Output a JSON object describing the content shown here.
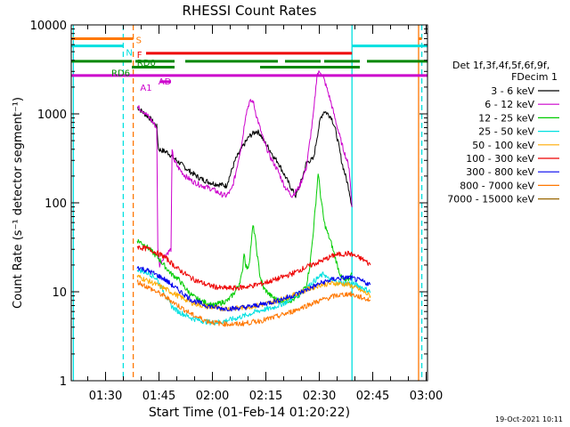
{
  "chart_data": {
    "type": "line",
    "title": "RHESSI Count Rates",
    "xlabel": "Start Time (01-Feb-14 01:20:22)",
    "ylabel": "Count Rate (s⁻¹ detector segment⁻¹)",
    "ylog": true,
    "ylim": [
      1,
      10000
    ],
    "xlim_minutes": [
      0,
      100
    ],
    "x_unit": "minutes after 01:20:22",
    "xticks": [
      {
        "label": "01:30",
        "minute": 9.63
      },
      {
        "label": "01:45",
        "minute": 24.63
      },
      {
        "label": "02:00",
        "minute": 39.63
      },
      {
        "label": "02:15",
        "minute": 54.63
      },
      {
        "label": "02:30",
        "minute": 69.63
      },
      {
        "label": "02:45",
        "minute": 84.63
      },
      {
        "label": "03:00",
        "minute": 99.63
      }
    ],
    "yticks": [
      {
        "label": "1",
        "value": 1
      },
      {
        "label": "10",
        "value": 10
      },
      {
        "label": "100",
        "value": 100
      },
      {
        "label": "1000",
        "value": 1000
      },
      {
        "label": "10000",
        "value": 10000
      }
    ],
    "legend": {
      "position": "right",
      "header": [
        "Det 1f,3f,4f,5f,6f,9f,",
        "FDecim 1"
      ]
    },
    "series": [
      {
        "name": "3 - 6 keV",
        "color": "#000000",
        "x": [
          18.5,
          20,
          22,
          24,
          24.5,
          27,
          30,
          33,
          36,
          38,
          40,
          42,
          43.5,
          44.5,
          46,
          48,
          50,
          52,
          53,
          54,
          56,
          57,
          58,
          60,
          62,
          63,
          64,
          65,
          66,
          67,
          68,
          69,
          70,
          71,
          72,
          73,
          74,
          75,
          76,
          77,
          78,
          78.8
        ],
        "y": [
          1200,
          1050,
          900,
          720,
          400,
          370,
          290,
          230,
          190,
          175,
          165,
          160,
          155,
          200,
          300,
          420,
          560,
          640,
          600,
          500,
          380,
          320,
          290,
          200,
          140,
          120,
          150,
          200,
          280,
          300,
          310,
          550,
          900,
          1080,
          1000,
          920,
          700,
          460,
          280,
          200,
          140,
          90
        ]
      },
      {
        "name": "6 - 12 keV",
        "color": "#cc00cc",
        "x": [
          18.5,
          20,
          22,
          24,
          24.3,
          24.8,
          26,
          28,
          28.3,
          29,
          30,
          32,
          34,
          36,
          38,
          40,
          42,
          43.5,
          45,
          46,
          48,
          49,
          50,
          51,
          52,
          54,
          56,
          58,
          60,
          62,
          64,
          66,
          67,
          68,
          69,
          70,
          71,
          72,
          73,
          74,
          76,
          78,
          78.8
        ],
        "y": [
          1200,
          1100,
          900,
          700,
          30,
          20,
          25,
          30,
          380,
          290,
          250,
          200,
          175,
          160,
          150,
          140,
          125,
          120,
          140,
          200,
          500,
          1000,
          1350,
          1400,
          950,
          500,
          320,
          230,
          150,
          120,
          150,
          250,
          500,
          1000,
          2800,
          3000,
          2400,
          1800,
          1300,
          900,
          450,
          250,
          90
        ]
      },
      {
        "name": "12 - 25 keV",
        "color": "#00cc00",
        "x": [
          18.5,
          20,
          22,
          24,
          26,
          28,
          30,
          32,
          34,
          36,
          38,
          40,
          42,
          44,
          46,
          47,
          48,
          48.5,
          49,
          49.5,
          50,
          50.5,
          51,
          51.5,
          52,
          53,
          54,
          56,
          58,
          60,
          62,
          64,
          66,
          67,
          68,
          69,
          69.3,
          70,
          71,
          72,
          73,
          74,
          75,
          76,
          77,
          78,
          78.8
        ],
        "y": [
          38,
          35,
          30,
          25,
          20,
          16,
          14,
          11,
          9,
          8,
          7.5,
          7,
          7.5,
          8,
          10,
          12,
          16,
          28,
          20,
          18,
          22,
          35,
          55,
          45,
          30,
          15,
          11,
          9,
          8,
          8,
          8,
          9,
          12,
          20,
          50,
          150,
          220,
          120,
          60,
          45,
          35,
          25,
          18,
          14,
          13,
          14,
          16
        ]
      },
      {
        "name": "25 - 50 keV",
        "color": "#00e0e0",
        "x": [
          18.5,
          20,
          22,
          24,
          26,
          28,
          30,
          32,
          34,
          36,
          38,
          40,
          42,
          44,
          46,
          48,
          50,
          52,
          54,
          56,
          58,
          60,
          62,
          64,
          66,
          68,
          69,
          70,
          71,
          72,
          74,
          76,
          78,
          80,
          82,
          84
        ],
        "y": [
          18,
          17,
          16,
          14,
          10,
          7,
          6,
          5.5,
          5,
          4.8,
          4.6,
          4.5,
          4.6,
          4.8,
          5,
          5.3,
          5.6,
          6,
          6.3,
          6.5,
          7,
          7.5,
          8.5,
          9.5,
          11,
          13,
          14,
          15,
          16,
          14,
          13,
          12.5,
          12.5,
          12,
          11,
          10
        ]
      },
      {
        "name": "50 - 100 keV",
        "color": "#ffaa00",
        "x": [
          18.5,
          22,
          26,
          30,
          34,
          38,
          42,
          46,
          50,
          54,
          58,
          62,
          66,
          70,
          74,
          78,
          82,
          84
        ],
        "y": [
          15,
          13,
          11,
          9,
          7.5,
          6.8,
          6.5,
          6.5,
          6.8,
          7.2,
          8,
          9,
          10.5,
          12,
          12.5,
          12,
          10,
          9
        ]
      },
      {
        "name": "100 - 300 keV",
        "color": "#ee0000",
        "x": [
          18.5,
          22,
          26,
          30,
          34,
          38,
          42,
          46,
          50,
          54,
          58,
          62,
          66,
          70,
          74,
          78,
          82,
          84
        ],
        "y": [
          32,
          30,
          25,
          18,
          14,
          12,
          11,
          11,
          11.5,
          12.5,
          14,
          16,
          19,
          22,
          26,
          27,
          23,
          20
        ]
      },
      {
        "name": "300 - 800 keV",
        "color": "#0000ee",
        "x": [
          18.5,
          22,
          26,
          30,
          34,
          38,
          42,
          46,
          50,
          54,
          58,
          62,
          66,
          70,
          74,
          78,
          82,
          84
        ],
        "y": [
          19,
          17,
          14,
          10.5,
          8,
          7,
          6.5,
          6.5,
          6.8,
          7.3,
          8,
          9,
          10.5,
          12.5,
          14,
          14.5,
          13,
          12
        ]
      },
      {
        "name": "800 - 7000 keV",
        "color": "#ff7700",
        "x": [
          18.5,
          22,
          26,
          30,
          34,
          38,
          42,
          46,
          50,
          54,
          58,
          62,
          66,
          70,
          74,
          78,
          82,
          84
        ],
        "y": [
          13,
          11,
          9,
          7,
          5.5,
          4.7,
          4.4,
          4.3,
          4.5,
          4.8,
          5.3,
          6,
          7,
          8,
          9,
          9.5,
          8.5,
          8
        ]
      },
      {
        "name": "7000 - 15000 keV",
        "color": "#996600",
        "x": [],
        "y": []
      }
    ],
    "vertical_lines": [
      {
        "minute": 0.6,
        "color": "#00e0e0",
        "style": "solid"
      },
      {
        "minute": 14.6,
        "color": "#00e0e0",
        "style": "dashed"
      },
      {
        "minute": 17.4,
        "color": "#ff7700",
        "style": "dashed"
      },
      {
        "minute": 78.8,
        "color": "#00e0e0",
        "style": "solid"
      },
      {
        "minute": 97.5,
        "color": "#ff7700",
        "style": "solid"
      },
      {
        "minute": 98.4,
        "color": "#00e0e0",
        "style": "dashed"
      }
    ],
    "flag_bars": [
      {
        "label": "S",
        "color": "#ff7700",
        "segments": [
          [
            0,
            17.4
          ],
          [
            97.5,
            98.4
          ]
        ],
        "value": 7000
      },
      {
        "label": "N",
        "color": "#00e0e0",
        "segments": [
          [
            0,
            14.6
          ],
          [
            78.8,
            100
          ]
        ],
        "value": 5800
      },
      {
        "label": "F",
        "color": "#ee0000",
        "segments": [
          [
            21,
            78.8
          ]
        ],
        "value": 4800
      },
      {
        "label": "RD0",
        "color": "#008800",
        "segments": [
          [
            0,
            17
          ],
          [
            18,
            29
          ],
          [
            32,
            58
          ],
          [
            60,
            70
          ],
          [
            71,
            81
          ],
          [
            83,
            100
          ]
        ],
        "value": 3900
      },
      {
        "label": "RD6",
        "color": "#008800",
        "segments": [
          [
            17,
            29
          ],
          [
            53,
            70
          ],
          [
            70,
            81
          ]
        ],
        "value": 3350
      },
      {
        "label": "AD",
        "color": "#cc00cc",
        "segments": [
          [
            0,
            100
          ]
        ],
        "value": 2700
      },
      {
        "label": "A1",
        "color": "#cc00cc",
        "segments": [
          [
            25,
            28
          ]
        ],
        "value": 2300
      }
    ]
  },
  "footer": {
    "timestamp": "19-Oct-2021 10:11"
  }
}
